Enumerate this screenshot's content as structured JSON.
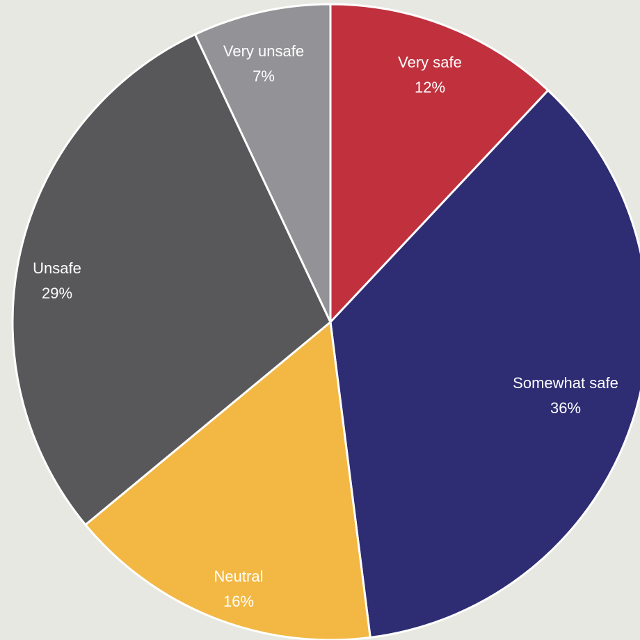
{
  "chart_data": {
    "type": "pie",
    "title": "",
    "start_angle_deg": 0,
    "direction": "clockwise",
    "slices": [
      {
        "label": "Very safe",
        "value": 12,
        "value_text": "12%",
        "color": "#C0313D",
        "label_color": "#FFFFFF"
      },
      {
        "label": "Somewhat safe",
        "value": 36,
        "value_text": "36%",
        "color": "#2E2C73",
        "label_color": "#FFFFFF"
      },
      {
        "label": "Neutral",
        "value": 16,
        "value_text": "16%",
        "color": "#F2B843",
        "label_color": "#FFFFFF"
      },
      {
        "label": "Unsafe",
        "value": 29,
        "value_text": "29%",
        "color": "#58585A",
        "label_color": "#FFFFFF"
      },
      {
        "label": "Very unsafe",
        "value": 7,
        "value_text": "7%",
        "color": "#939397",
        "label_color": "#FFFFFF"
      }
    ]
  },
  "colors": {
    "background": "#E8E8E2",
    "slice_border": "#FFFFFF"
  }
}
